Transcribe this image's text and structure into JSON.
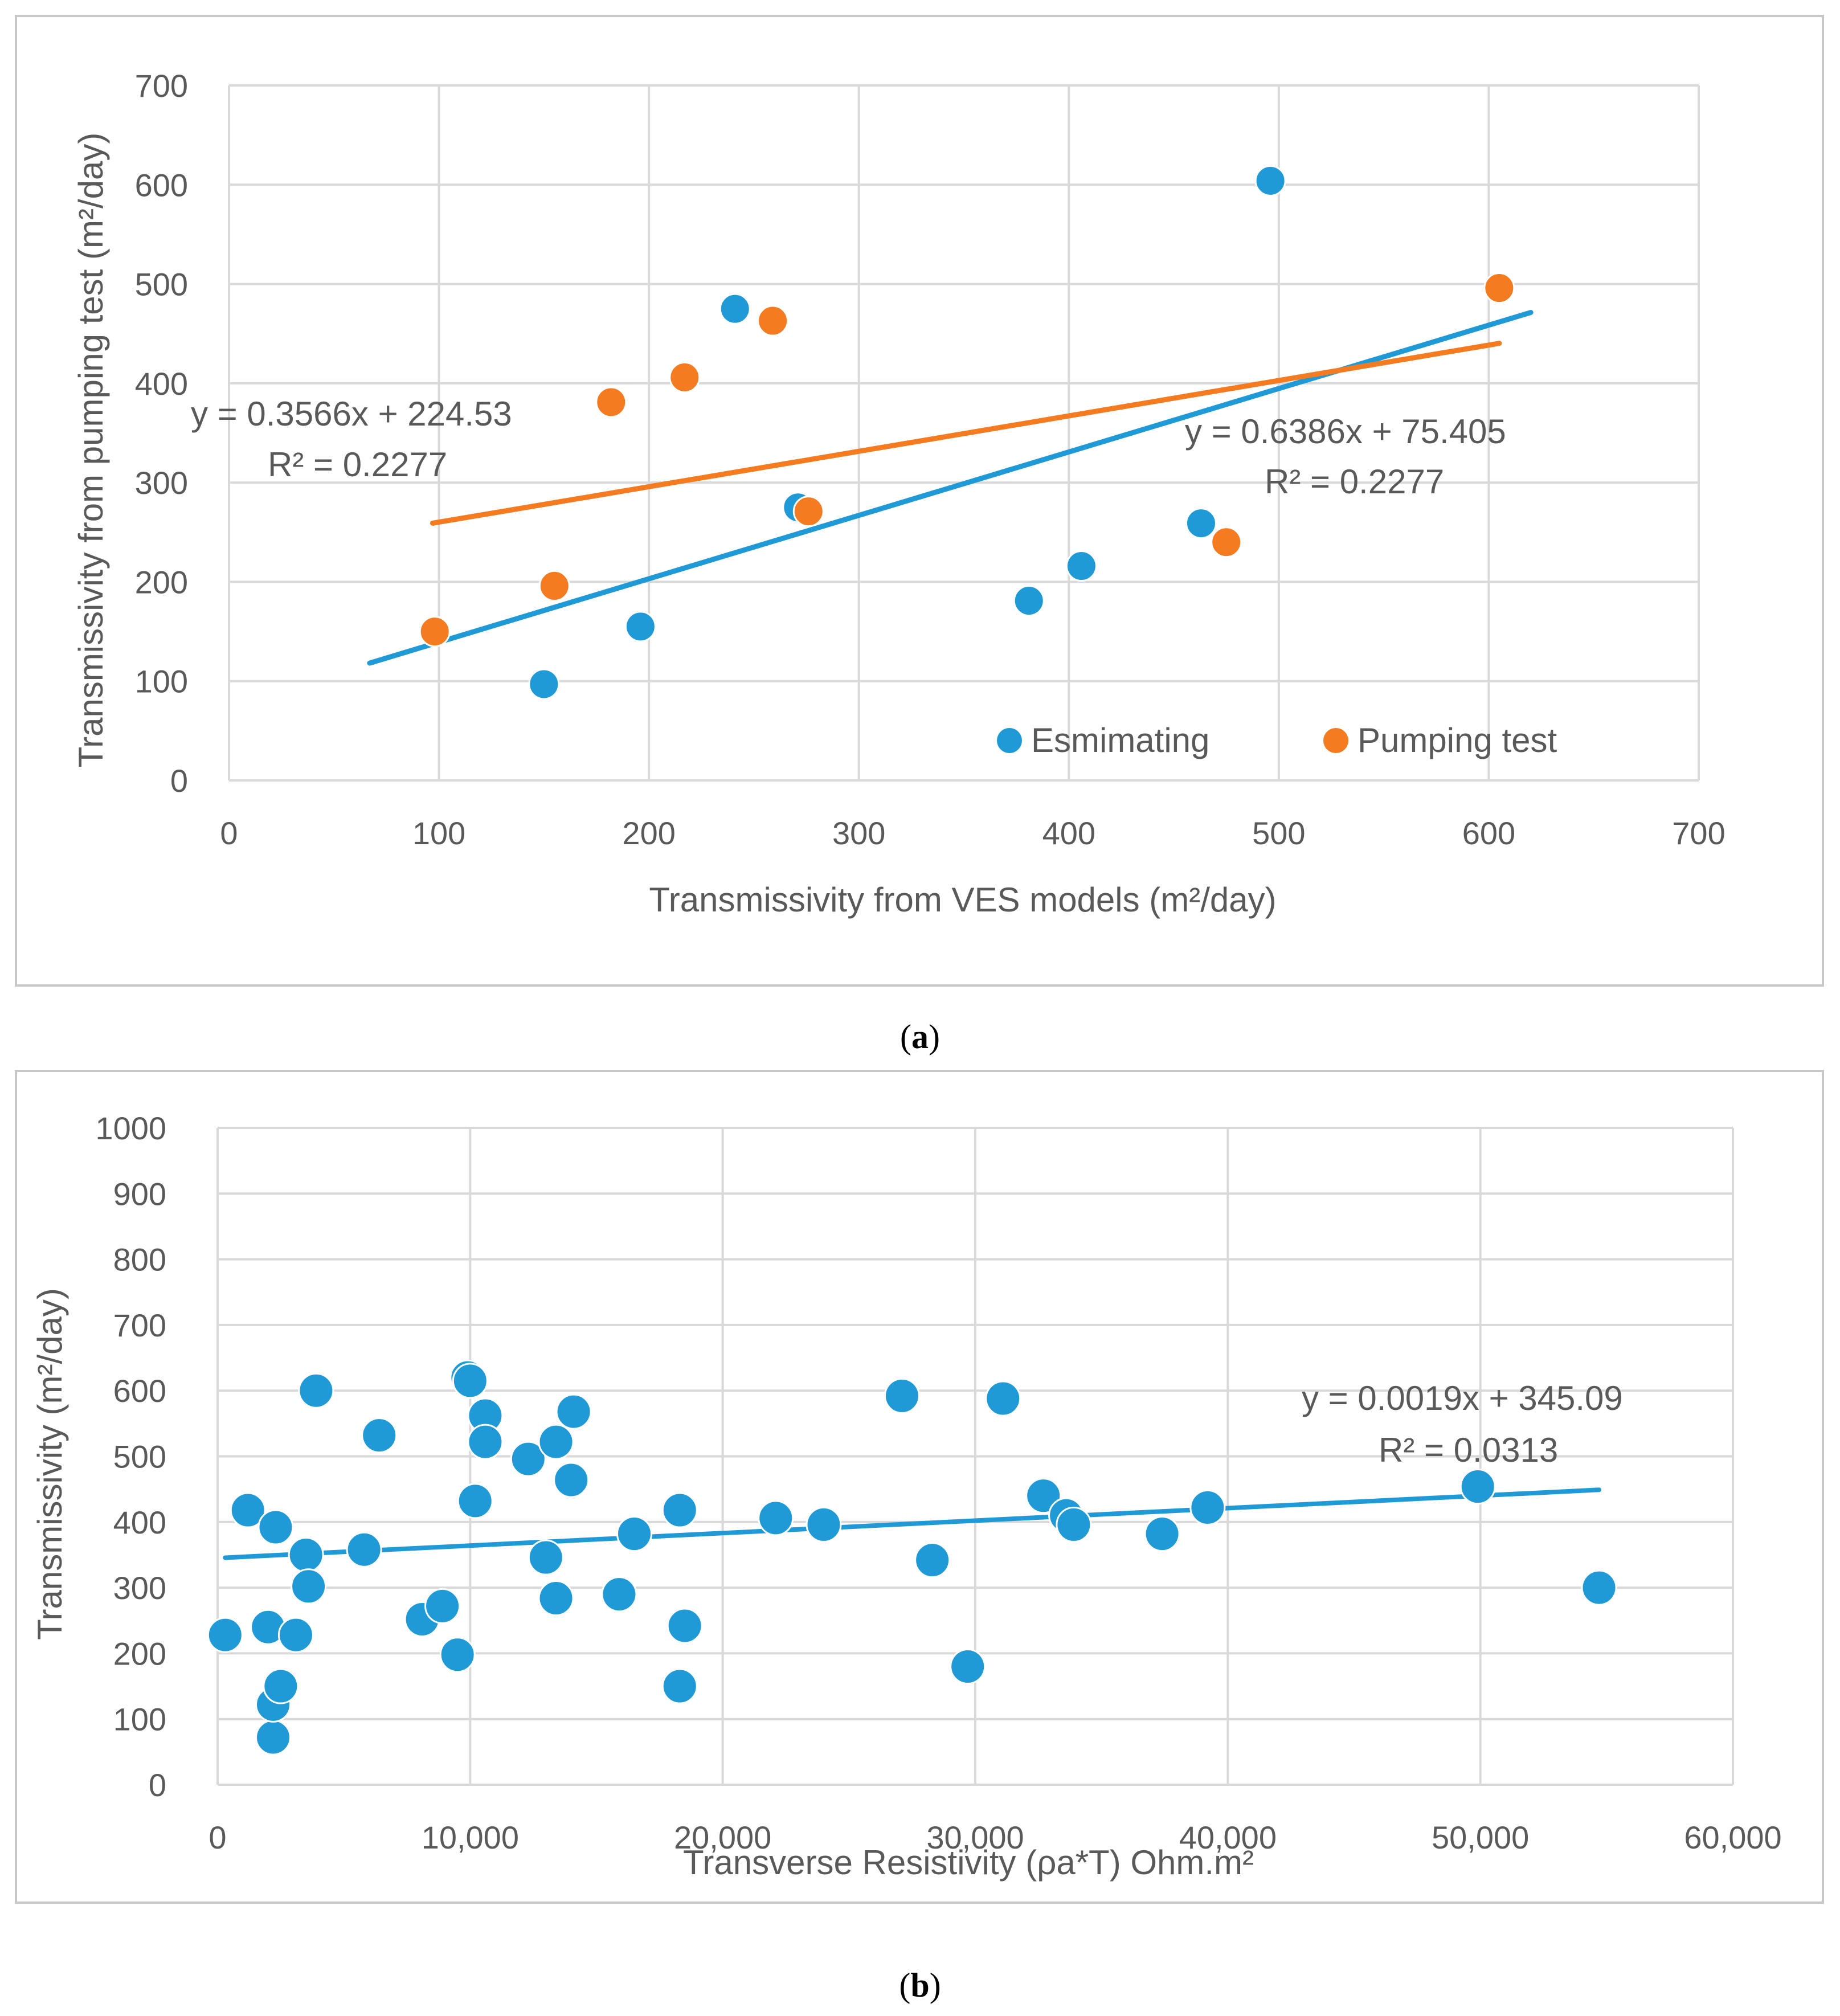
{
  "colors": {
    "estimating": "#1f9ad6",
    "pumping": "#f47b20",
    "grid": "#d9d9d9",
    "frame": "#c8c8c8",
    "text": "#595959"
  },
  "chart_data": [
    {
      "id": "a",
      "type": "scatter",
      "caption": "(a)",
      "caption_open": "(",
      "caption_letter": "a",
      "caption_close": ")",
      "xlabel": "Transmissivity from VES models (m²/day)",
      "ylabel": "Transmissivity from pumping test (m²/day)",
      "xlim": [
        0,
        700
      ],
      "ylim": [
        0,
        700
      ],
      "xticks": [
        {
          "value": 0,
          "label": "0"
        },
        {
          "value": 100,
          "label": "100"
        },
        {
          "value": 200,
          "label": "200"
        },
        {
          "value": 300,
          "label": "300"
        },
        {
          "value": 400,
          "label": "400"
        },
        {
          "value": 500,
          "label": "500"
        },
        {
          "value": 600,
          "label": "600"
        },
        {
          "value": 700,
          "label": "700"
        }
      ],
      "yticks": [
        {
          "value": 0,
          "label": "0"
        },
        {
          "value": 100,
          "label": "100"
        },
        {
          "value": 200,
          "label": "200"
        },
        {
          "value": 300,
          "label": "300"
        },
        {
          "value": 400,
          "label": "400"
        },
        {
          "value": 500,
          "label": "500"
        },
        {
          "value": 600,
          "label": "600"
        },
        {
          "value": 700,
          "label": "700"
        }
      ],
      "grid": true,
      "legend_position": "bottom-right",
      "series": [
        {
          "name": "Esmimating",
          "color_key": "estimating",
          "points": [
            [
              150,
              97
            ],
            [
              196,
              155
            ],
            [
              241,
              475
            ],
            [
              271,
              275
            ],
            [
              381,
              181
            ],
            [
              406,
              216
            ],
            [
              463,
              259
            ],
            [
              496,
              604
            ]
          ],
          "trendline": {
            "slope": 0.6386,
            "intercept": 75.405,
            "x_range": [
              67,
              620
            ]
          },
          "equation": "y = 0.6386x + 75.405",
          "r2": "R² = 0.2277",
          "label_anchor": "right"
        },
        {
          "name": "Pumping test",
          "color_key": "pumping",
          "points": [
            [
              98,
              150
            ],
            [
              155,
              196
            ],
            [
              182,
              381
            ],
            [
              217,
              406
            ],
            [
              259,
              463
            ],
            [
              276,
              271
            ],
            [
              475,
              240
            ],
            [
              605,
              496
            ]
          ],
          "trendline": {
            "slope": 0.3566,
            "intercept": 224.53,
            "x_range": [
              97,
              605
            ]
          },
          "equation": "y = 0.3566x + 224.53",
          "r2": "R² = 0.2277",
          "label_anchor": "left"
        }
      ]
    },
    {
      "id": "b",
      "type": "scatter",
      "caption": "(b)",
      "caption_open": "(",
      "caption_letter": "b",
      "caption_close": ")",
      "xlabel": "Transverse Resistivity (ρa*T) Ohm.m²",
      "ylabel": "Transmissivity (m²/day)",
      "xlim": [
        0,
        60000
      ],
      "ylim": [
        0,
        1000
      ],
      "xticks": [
        {
          "value": 0,
          "label": "0"
        },
        {
          "value": 10000,
          "label": "10,000"
        },
        {
          "value": 20000,
          "label": "20,000"
        },
        {
          "value": 30000,
          "label": "30,000"
        },
        {
          "value": 40000,
          "label": "40,000"
        },
        {
          "value": 50000,
          "label": "50,000"
        },
        {
          "value": 60000,
          "label": "60,000"
        }
      ],
      "yticks": [
        {
          "value": 0,
          "label": "0"
        },
        {
          "value": 100,
          "label": "100"
        },
        {
          "value": 200,
          "label": "200"
        },
        {
          "value": 300,
          "label": "300"
        },
        {
          "value": 400,
          "label": "400"
        },
        {
          "value": 500,
          "label": "500"
        },
        {
          "value": 600,
          "label": "600"
        },
        {
          "value": 700,
          "label": "700"
        },
        {
          "value": 800,
          "label": "800"
        },
        {
          "value": 900,
          "label": "900"
        },
        {
          "value": 1000,
          "label": "1000"
        }
      ],
      "grid": true,
      "series": [
        {
          "name": "Transmissivity",
          "color_key": "estimating",
          "points": [
            [
              300,
              228
            ],
            [
              1200,
              418
            ],
            [
              2000,
              240
            ],
            [
              2200,
              72
            ],
            [
              2200,
              122
            ],
            [
              2300,
              392
            ],
            [
              2500,
              150
            ],
            [
              3100,
              228
            ],
            [
              3500,
              350
            ],
            [
              3600,
              302
            ],
            [
              3900,
              600
            ],
            [
              5800,
              358
            ],
            [
              6400,
              532
            ],
            [
              8100,
              252
            ],
            [
              8900,
              272
            ],
            [
              9500,
              198
            ],
            [
              9900,
              620
            ],
            [
              10000,
              615
            ],
            [
              10200,
              432
            ],
            [
              10600,
              562
            ],
            [
              10600,
              522
            ],
            [
              12300,
              496
            ],
            [
              13000,
              346
            ],
            [
              13400,
              522
            ],
            [
              13400,
              284
            ],
            [
              14000,
              464
            ],
            [
              14100,
              568
            ],
            [
              15900,
              290
            ],
            [
              16500,
              382
            ],
            [
              18300,
              418
            ],
            [
              18300,
              150
            ],
            [
              18500,
              242
            ],
            [
              22100,
              406
            ],
            [
              24000,
              396
            ],
            [
              27100,
              592
            ],
            [
              28300,
              342
            ],
            [
              29700,
              180
            ],
            [
              31100,
              588
            ],
            [
              32700,
              440
            ],
            [
              33600,
              410
            ],
            [
              33900,
              396
            ],
            [
              37400,
              382
            ],
            [
              39200,
              422
            ],
            [
              49900,
              454
            ],
            [
              54700,
              300
            ]
          ],
          "trendline": {
            "slope": 0.0019,
            "intercept": 345.09,
            "x_range": [
              300,
              54700
            ]
          },
          "equation": "y = 0.0019x + 345.09",
          "r2": "R² = 0.0313"
        }
      ]
    }
  ]
}
